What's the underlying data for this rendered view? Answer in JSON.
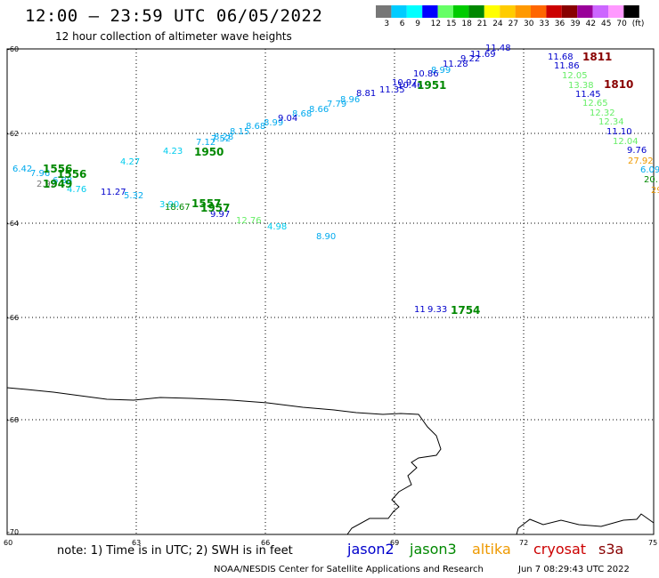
{
  "header": {
    "title": "12:00 – 23:59 UTC 06/05/2022",
    "subtitle": "12 hour collection of altimeter wave heights"
  },
  "colorbar": {
    "labels": [
      "3",
      "6",
      "9",
      "12",
      "15",
      "18",
      "21",
      "24",
      "27",
      "30",
      "33",
      "36",
      "39",
      "42",
      "45",
      "70",
      "(ft)"
    ],
    "colors": [
      "#777777",
      "#00ccff",
      "#00ffff",
      "#0000ff",
      "#66ff66",
      "#00cc00",
      "#008800",
      "#ffff00",
      "#ffcc00",
      "#ff9900",
      "#ff6600",
      "#cc0000",
      "#880000",
      "#990099",
      "#cc66ff",
      "#ff99ff",
      "#000000"
    ]
  },
  "axes": {
    "lat_labels": [
      "-60",
      "-62",
      "-64",
      "-66",
      "-68",
      "-70"
    ],
    "lon_labels": [
      "60",
      "63",
      "66",
      "69",
      "72",
      "75"
    ]
  },
  "observations": [
    {
      "text": "11.48",
      "color": "#0000cc"
    },
    {
      "text": "11.69",
      "color": "#0000cc"
    },
    {
      "text": "9.22",
      "color": "#0000cc"
    },
    {
      "text": "11.28",
      "color": "#0000cc"
    },
    {
      "text": "8.99",
      "color": "#00aaee"
    },
    {
      "text": "10.86",
      "color": "#0000cc"
    },
    {
      "text": "10.97",
      "color": "#0000cc"
    },
    {
      "text": "10.46",
      "color": "#0000cc"
    },
    {
      "text": "11.35",
      "color": "#0000cc"
    },
    {
      "text": "8.81",
      "color": "#0000cc"
    },
    {
      "text": "8.96",
      "color": "#00aaee"
    },
    {
      "text": "7.79",
      "color": "#00aaee"
    },
    {
      "text": "8.66",
      "color": "#00aaee"
    },
    {
      "text": "8.68",
      "color": "#00aaee"
    },
    {
      "text": "8.99",
      "color": "#00aaee"
    },
    {
      "text": "9.04",
      "color": "#0000cc"
    },
    {
      "text": "8.68",
      "color": "#00aaee"
    },
    {
      "text": "8.15",
      "color": "#00aaee"
    },
    {
      "text": "8.28",
      "color": "#00aaee"
    },
    {
      "text": "7.52",
      "color": "#00aaee"
    },
    {
      "text": "7.12",
      "color": "#00aaee"
    },
    {
      "text": "4.23",
      "color": "#00ccee"
    },
    {
      "text": "4.27",
      "color": "#00ccee"
    },
    {
      "text": "6.42",
      "color": "#00aaee"
    },
    {
      "text": "7.96",
      "color": "#00aaee"
    },
    {
      "text": "2.92",
      "color": "#777777"
    },
    {
      "text": "6.88",
      "color": "#00aaee"
    },
    {
      "text": "4.76",
      "color": "#00ccee"
    },
    {
      "text": "11.27",
      "color": "#0000cc"
    },
    {
      "text": "5.32",
      "color": "#00aaee"
    },
    {
      "text": "3.90",
      "color": "#00ccee"
    },
    {
      "text": "18.67",
      "color": "#008800"
    },
    {
      "text": "9.97",
      "color": "#0000cc"
    },
    {
      "text": "12.76",
      "color": "#66ee66"
    },
    {
      "text": "4.98",
      "color": "#00ccee"
    },
    {
      "text": "8.90",
      "color": "#00aaee"
    },
    {
      "text": "11.68",
      "color": "#0000cc"
    },
    {
      "text": "11.86",
      "color": "#0000cc"
    },
    {
      "text": "12.05",
      "color": "#66ee66"
    },
    {
      "text": "13.38",
      "color": "#66ee66"
    },
    {
      "text": "11.45",
      "color": "#0000cc"
    },
    {
      "text": "12.65",
      "color": "#66ee66"
    },
    {
      "text": "12.32",
      "color": "#66ee66"
    },
    {
      "text": "12.34",
      "color": "#66ee66"
    },
    {
      "text": "11.10",
      "color": "#0000cc"
    },
    {
      "text": "12.04",
      "color": "#66ee66"
    },
    {
      "text": "9.76",
      "color": "#0000cc"
    },
    {
      "text": "27.92",
      "color": "#ee9900"
    },
    {
      "text": "6.09",
      "color": "#00aaee"
    },
    {
      "text": "20.",
      "color": "#008800"
    },
    {
      "text": "29",
      "color": "#ee9900"
    },
    {
      "text": "11",
      "color": "#0000cc"
    },
    {
      "text": "9.33",
      "color": "#0000cc"
    }
  ],
  "passes": [
    {
      "text": "1811",
      "color": "#880000"
    },
    {
      "text": "1810",
      "color": "#880000"
    },
    {
      "text": "1951",
      "color": "#008800"
    },
    {
      "text": "1950",
      "color": "#008800"
    },
    {
      "text": "1556",
      "color": "#008800"
    },
    {
      "text": "1556",
      "color": "#008800"
    },
    {
      "text": "1949",
      "color": "#008800"
    },
    {
      "text": "1557",
      "color": "#008800"
    },
    {
      "text": "1957",
      "color": "#008800"
    },
    {
      "text": "1754",
      "color": "#008800"
    }
  ],
  "footer": {
    "note": "note: 1) Time is in UTC; 2) SWH is in feet",
    "legend": [
      {
        "label": "jason2",
        "color": "#0000cc"
      },
      {
        "label": "jason3",
        "color": "#008800"
      },
      {
        "label": "altika",
        "color": "#ee9900"
      },
      {
        "label": "cryosat",
        "color": "#cc0000"
      },
      {
        "label": "s3a",
        "color": "#880000"
      }
    ],
    "credit": "NOAA/NESDIS Center for Satellite Applications and Research",
    "timestamp": "Jun  7 08:29:43 UTC 2022"
  }
}
